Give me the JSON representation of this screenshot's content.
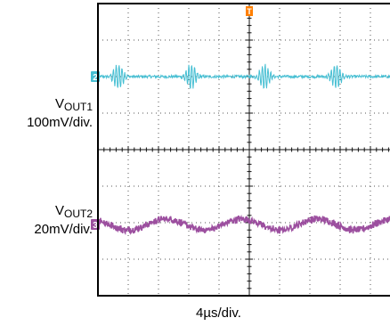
{
  "chart_data": {
    "type": "line",
    "title": "",
    "grid": true,
    "divisions": {
      "horizontal": 10,
      "vertical": 8
    },
    "x_axis": {
      "label": "4µs/div.",
      "unit": "µs",
      "per_div": 4,
      "range": [
        0,
        40
      ]
    },
    "trigger_marker": "T",
    "trigger_time_us": 20,
    "series": [
      {
        "channel": "2",
        "name_main": "V",
        "name_sub": "OUT1",
        "scale_label": "100mV/div.",
        "unit": "mV",
        "per_div": 100,
        "color": "#46bfd3",
        "reference_level_div": 6.0,
        "ripple_period_us": 10.0,
        "burst_times_us": [
          2.7,
          12.3,
          22.0,
          31.5
        ],
        "burst_peak_to_peak_mV": 70,
        "noise_mV": 4
      },
      {
        "channel": "3",
        "name_main": "V",
        "name_sub": "OUT2",
        "scale_label": "20mV/div.",
        "unit": "mV",
        "per_div": 20,
        "color": "#9c4f9f",
        "reference_level_div": 1.95,
        "ripple_period_us": 10.0,
        "ripple_peaks_us": [
          9.0,
          19.8,
          29.6
        ],
        "ripple_peak_to_peak_mV": 6,
        "noise_mV": 1.5
      }
    ]
  }
}
